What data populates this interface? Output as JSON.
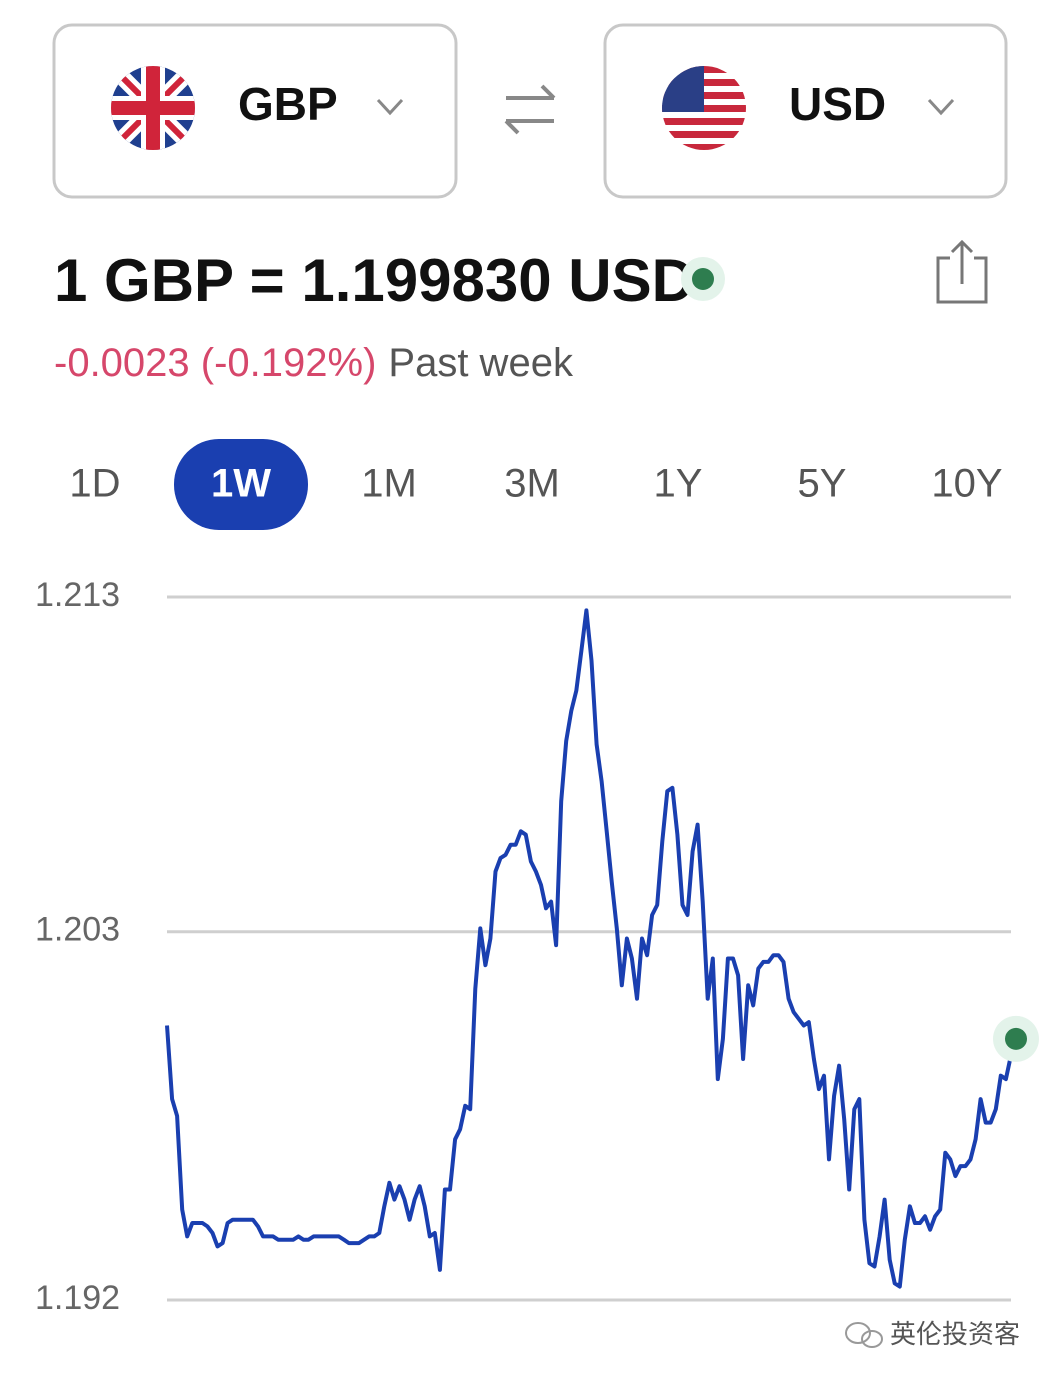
{
  "from_currency": "GBP",
  "to_currency": "USD",
  "rate_text": "1 GBP = 1.199830 USD",
  "change": "-0.0023 (-0.192%)",
  "period": "Past week",
  "tabs": [
    "1D",
    "1W",
    "1M",
    "3M",
    "1Y",
    "5Y",
    "10Y"
  ],
  "active_tab": 1,
  "watermark": "英伦投资客",
  "chart_data": {
    "type": "line",
    "ylim": [
      1.192,
      1.213
    ],
    "yticks": [
      1.213,
      1.203,
      1.192
    ],
    "grid": true,
    "series": [
      {
        "color": "#1a3fb0",
        "values": [
          1.2002,
          1.198,
          1.1975,
          1.1947,
          1.1939,
          1.1943,
          1.1943,
          1.1943,
          1.1942,
          1.194,
          1.1936,
          1.1937,
          1.1943,
          1.1944,
          1.1944,
          1.1944,
          1.1944,
          1.1944,
          1.1942,
          1.1939,
          1.1939,
          1.1939,
          1.1938,
          1.1938,
          1.1938,
          1.1938,
          1.1939,
          1.1938,
          1.1938,
          1.1939,
          1.1939,
          1.1939,
          1.1939,
          1.1939,
          1.1939,
          1.1938,
          1.1937,
          1.1937,
          1.1937,
          1.1938,
          1.1939,
          1.1939,
          1.194,
          1.1948,
          1.1955,
          1.195,
          1.1954,
          1.195,
          1.1944,
          1.195,
          1.1954,
          1.1948,
          1.1939,
          1.194,
          1.1929,
          1.1953,
          1.1953,
          1.1968,
          1.1971,
          1.1978,
          1.1977,
          1.2013,
          1.2031,
          1.202,
          1.2028,
          1.2048,
          1.2052,
          1.2053,
          1.2056,
          1.2056,
          1.206,
          1.2059,
          1.2051,
          1.2048,
          1.2044,
          1.2037,
          1.2039,
          1.2026,
          1.2069,
          1.2087,
          1.2096,
          1.2102,
          1.2114,
          1.2126,
          1.2111,
          1.2086,
          1.2075,
          1.206,
          1.2045,
          1.2031,
          1.2014,
          1.2028,
          1.2022,
          1.201,
          1.2028,
          1.2023,
          1.2035,
          1.2038,
          1.2057,
          1.2072,
          1.2073,
          1.2059,
          1.2038,
          1.2035,
          1.2054,
          1.2062,
          1.2039,
          1.201,
          1.2022,
          1.1986,
          1.1998,
          1.2022,
          1.2022,
          1.2017,
          1.1992,
          1.2014,
          1.2008,
          1.2019,
          1.2021,
          1.2021,
          1.2023,
          1.2023,
          1.2021,
          1.201,
          1.2006,
          1.2004,
          1.2002,
          1.2003,
          1.1992,
          1.1983,
          1.1987,
          1.1962,
          1.1981,
          1.199,
          1.1974,
          1.1953,
          1.1977,
          1.198,
          1.1944,
          1.1931,
          1.193,
          1.1939,
          1.195,
          1.1932,
          1.1925,
          1.1924,
          1.1938,
          1.1948,
          1.1943,
          1.1943,
          1.1945,
          1.1941,
          1.1945,
          1.1947,
          1.1964,
          1.1962,
          1.1957,
          1.196,
          1.196,
          1.1962,
          1.1968,
          1.198,
          1.1973,
          1.1973,
          1.1977,
          1.1987,
          1.1986,
          1.1993,
          1.1998
        ]
      }
    ]
  }
}
